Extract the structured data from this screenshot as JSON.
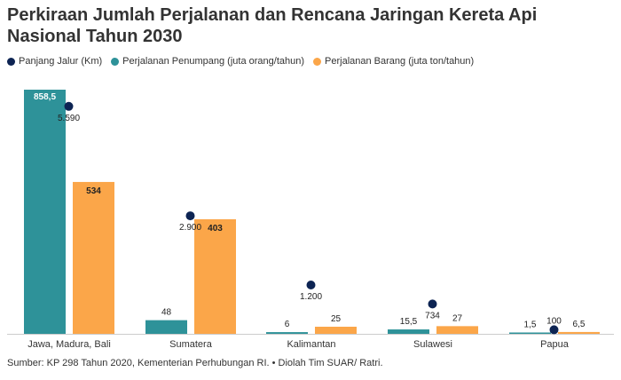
{
  "title": "Perkiraan Jumlah Perjalanan dan Rencana Jaringan Kereta Api Nasional Tahun 2030",
  "source": "Sumber: KP 298 Tahun 2020, Kementerian Perhubungan RI. • Diolah Tim SUAR/ Ratri.",
  "colors": {
    "rail": "#0d2453",
    "passenger": "#2e9299",
    "freight": "#fba649",
    "axis": "#cccccc"
  },
  "legend": [
    {
      "label": "Panjang Jalur (Km)",
      "color": "#0d2453"
    },
    {
      "label": "Perjalanan Penumpang (juta orang/tahun)",
      "color": "#2e9299"
    },
    {
      "label": "Perjalanan Barang (juta ton/tahun)",
      "color": "#fba649"
    }
  ],
  "chart_data": {
    "type": "bar",
    "categories": [
      "Jawa, Madura, Bali",
      "Sumatera",
      "Kalimantan",
      "Sulawesi",
      "Papua"
    ],
    "series": [
      {
        "name": "Perjalanan Penumpang (juta orang/tahun)",
        "kind": "bar",
        "color": "#2e9299",
        "values": [
          858.5,
          48,
          6,
          15.5,
          1.5
        ],
        "labels": [
          "858,5",
          "48",
          "6",
          "15,5",
          "1,5"
        ]
      },
      {
        "name": "Perjalanan Barang (juta ton/tahun)",
        "kind": "bar",
        "color": "#fba649",
        "values": [
          534,
          403,
          25,
          27,
          6.5
        ],
        "labels": [
          "534",
          "403",
          "25",
          "27",
          "6,5"
        ]
      },
      {
        "name": "Panjang Jalur (Km)",
        "kind": "dot",
        "color": "#0d2453",
        "values": [
          5590,
          2900,
          1200,
          734,
          100
        ],
        "labels": [
          "5.590",
          "2.900",
          "1.200",
          "734",
          "100"
        ]
      }
    ],
    "bar_ylim": [
      0,
      858.5
    ],
    "dot_ylim": [
      0,
      6000
    ]
  }
}
